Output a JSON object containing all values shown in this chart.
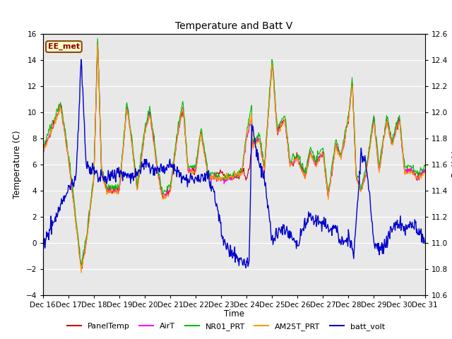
{
  "title": "Temperature and Batt V",
  "xlabel": "Time",
  "ylabel_left": "Temperature (C)",
  "ylabel_right": "Batt V",
  "ylim_left": [
    -4,
    16
  ],
  "ylim_right": [
    10.6,
    12.6
  ],
  "yticks_left": [
    -4,
    -2,
    0,
    2,
    4,
    6,
    8,
    10,
    12,
    14,
    16
  ],
  "yticks_right": [
    10.6,
    10.8,
    11.0,
    11.2,
    11.4,
    11.6,
    11.8,
    12.0,
    12.2,
    12.4,
    12.6
  ],
  "xtick_labels": [
    "Dec 16",
    "Dec 17",
    "Dec 18",
    "Dec 19",
    "Dec 20",
    "Dec 21",
    "Dec 22",
    "Dec 23",
    "Dec 24",
    "Dec 25",
    "Dec 26",
    "Dec 27",
    "Dec 28",
    "Dec 29",
    "Dec 30",
    "Dec 31"
  ],
  "station_label": "EE_met",
  "legend_entries": [
    "PanelTemp",
    "AirT",
    "NR01_PRT",
    "AM25T_PRT",
    "batt_volt"
  ],
  "legend_colors": [
    "#cc0000",
    "#ff00ff",
    "#00bb00",
    "#ff9900",
    "#0000cc"
  ],
  "line_colors": {
    "PanelTemp": "#cc0000",
    "AirT": "#ff00ff",
    "NR01_PRT": "#00bb00",
    "AM25T_PRT": "#ff9900",
    "batt_volt": "#0000cc"
  },
  "fig_bg": "#ffffff",
  "plot_bg": "#e8e8e8",
  "grid_color": "#d0d0d0"
}
